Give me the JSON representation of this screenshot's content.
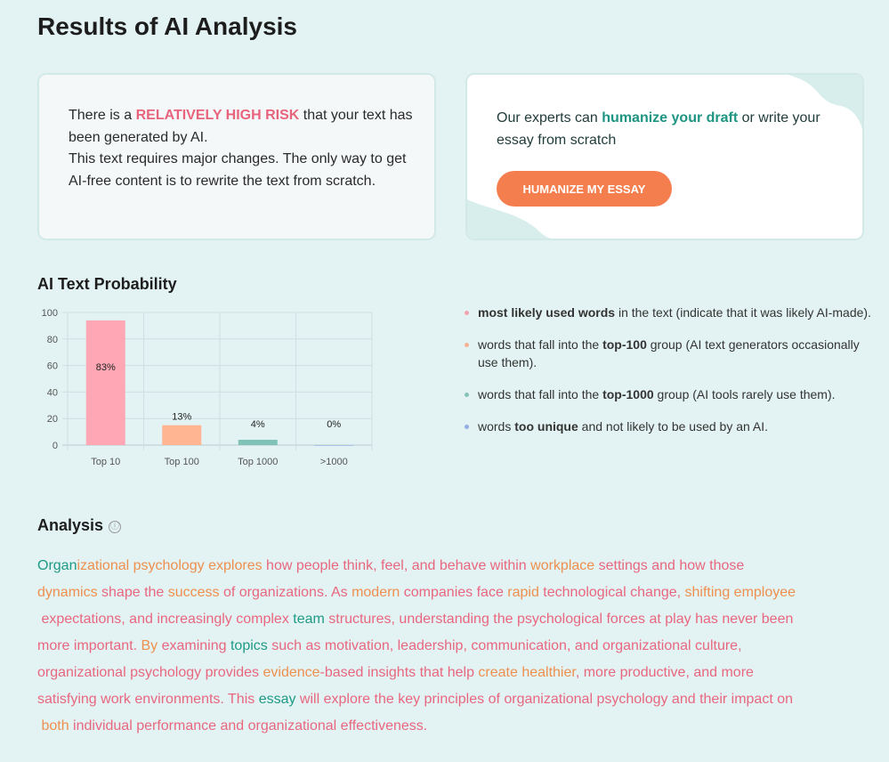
{
  "page_title": "Results of AI Analysis",
  "risk_card": {
    "prefix": "There is a ",
    "risk_level": "RELATIVELY HIGH RISK",
    "suffix": " that your text has been generated by AI.",
    "advice": "This text requires major changes. The only way to get AI-free content is to rewrite the text from scratch."
  },
  "cta_card": {
    "prefix": "Our experts can ",
    "highlight": "humanize your draft",
    "suffix": " or write your essay from scratch",
    "button_label": "HUMANIZE MY ESSAY"
  },
  "probability_title": "AI Text Probability",
  "chart_data": {
    "type": "bar",
    "categories": [
      "Top 10",
      "Top 100",
      "Top 1000",
      ">1000"
    ],
    "values": [
      94,
      15,
      4,
      0
    ],
    "data_labels": [
      "83%",
      "13%",
      "4%",
      "0%"
    ],
    "colors": [
      "#ffa7b4",
      "#ffb592",
      "#80c3b6",
      "#9fb6e6"
    ],
    "ylim": [
      0,
      100
    ],
    "yticks": [
      0,
      20,
      40,
      60,
      80,
      100
    ],
    "grid": true
  },
  "legend": [
    {
      "bold": "most likely used words",
      "pre": "",
      "post": " in the text (indicate that it was likely AI-made).",
      "color": "#f4a3b0"
    },
    {
      "pre": "words that fall into the ",
      "bold": "top-100",
      "post": " group (AI text generators occasionally use them).",
      "color": "#f7b294"
    },
    {
      "pre": "words that fall into the ",
      "bold": "top-1000",
      "post": " group (AI tools rarely use them).",
      "color": "#86c2b5"
    },
    {
      "pre": "words ",
      "bold": "too unique",
      "post": " and not likely to be used by an AI.",
      "color": "#94aee4"
    }
  ],
  "analysis": {
    "title": "Analysis",
    "info_icon": "ⓘ",
    "lines": [
      [
        [
          "g",
          "Organ"
        ],
        [
          "o",
          "izational psychology explores"
        ],
        [
          "p",
          " how people think, feel, and behave within "
        ],
        [
          "o",
          "workplace"
        ],
        [
          "p",
          " settings and how those"
        ]
      ],
      [
        [
          "o",
          "dynamics"
        ],
        [
          "p",
          " shape the "
        ],
        [
          "o",
          "success"
        ],
        [
          "p",
          " of organizations. As "
        ],
        [
          "o",
          "modern"
        ],
        [
          "p",
          " companies face "
        ],
        [
          "o",
          "rapid"
        ],
        [
          "p",
          " technological change, "
        ],
        [
          "o",
          "shifting employee"
        ]
      ],
      [
        [
          "p",
          " expectations, and increasingly complex "
        ],
        [
          "g",
          "team"
        ],
        [
          "p",
          " structures, understanding the psychological forces at play has never been"
        ]
      ],
      [
        [
          "p",
          "more important. "
        ],
        [
          "o",
          "By"
        ],
        [
          "p",
          " examining "
        ],
        [
          "g",
          "topics"
        ],
        [
          "p",
          " such as motivation, leadership, communication, and organizational culture,"
        ]
      ],
      [
        [
          "p",
          "organizational psychology provides "
        ],
        [
          "o",
          "evidence"
        ],
        [
          "p",
          "-based insights that help "
        ],
        [
          "o",
          "create healthier"
        ],
        [
          "p",
          ", more productive, and more"
        ]
      ],
      [
        [
          "p",
          "satisfying work environments. This "
        ],
        [
          "g",
          "essay"
        ],
        [
          "p",
          " will explore the key principles of organizational psychology and their impact on"
        ]
      ],
      [
        [
          "o",
          " both"
        ],
        [
          "p",
          " individual performance and organizational effectiveness."
        ]
      ]
    ]
  }
}
